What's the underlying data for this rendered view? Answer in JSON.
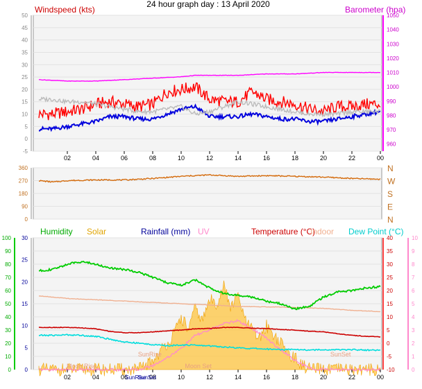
{
  "title": "24 hour graph day : 13 April 2020",
  "colors": {
    "wind_avg": "#0000dd",
    "wind_gust": "#ff0000",
    "wind_grey": "#bbbbbb",
    "baro": "#ff00ff",
    "direction": "#d46a0a",
    "humidity": "#00cc00",
    "solar": "#ffc640",
    "rainfall": "#000099",
    "uv": "#ff88cc",
    "temperature": "#cc0000",
    "indoor": "#f0b090",
    "dewpoint": "#00dddd",
    "plot_bg": "#f4f4f4"
  },
  "chart_data": [
    {
      "id": "wind_baro",
      "type": "line",
      "labels": {
        "left": "Windspeed (kts)",
        "right": "Barometer (hpa)"
      },
      "left_ticks": [
        "-5",
        "0",
        "5",
        "10",
        "15",
        "20",
        "25",
        "30",
        "35",
        "40",
        "45",
        "50"
      ],
      "right_ticks": [
        "960",
        "970",
        "980",
        "990",
        "1000",
        "1010",
        "1020",
        "1030",
        "1040",
        "1050"
      ],
      "ylim_left": [
        -5,
        50
      ],
      "ylim_right": [
        955,
        1050
      ],
      "x_ticks": [
        "02",
        "04",
        "06",
        "08",
        "10",
        "12",
        "14",
        "16",
        "18",
        "20",
        "22",
        "00"
      ],
      "series": [
        {
          "key": "gust",
          "color_key": "wind_gust",
          "values": [
            [
              0,
              10
            ],
            [
              1,
              10
            ],
            [
              2,
              11
            ],
            [
              3,
              12
            ],
            [
              4,
              14
            ],
            [
              5,
              15
            ],
            [
              6,
              14
            ],
            [
              7,
              13
            ],
            [
              8,
              14
            ],
            [
              9,
              19
            ],
            [
              10,
              20
            ],
            [
              11,
              21
            ],
            [
              12,
              16
            ],
            [
              13,
              15
            ],
            [
              14,
              15
            ],
            [
              15,
              19
            ],
            [
              16,
              16
            ],
            [
              17,
              15
            ],
            [
              18,
              14
            ],
            [
              19,
              12
            ],
            [
              20,
              11
            ],
            [
              21,
              13
            ],
            [
              22,
              13
            ],
            [
              23,
              14
            ],
            [
              24,
              14
            ]
          ]
        },
        {
          "key": "avg",
          "color_key": "wind_avg",
          "values": [
            [
              0,
              4
            ],
            [
              1,
              4
            ],
            [
              2,
              5
            ],
            [
              3,
              6
            ],
            [
              4,
              7
            ],
            [
              5,
              9
            ],
            [
              6,
              9
            ],
            [
              7,
              8
            ],
            [
              8,
              8
            ],
            [
              9,
              10
            ],
            [
              10,
              12
            ],
            [
              11,
              13
            ],
            [
              12,
              9
            ],
            [
              13,
              9
            ],
            [
              14,
              9
            ],
            [
              15,
              10
            ],
            [
              16,
              9
            ],
            [
              17,
              8
            ],
            [
              18,
              8
            ],
            [
              19,
              7
            ],
            [
              20,
              7
            ],
            [
              21,
              8
            ],
            [
              22,
              9
            ],
            [
              23,
              10
            ],
            [
              24,
              11
            ]
          ]
        },
        {
          "key": "grey",
          "color_key": "wind_grey",
          "values": [
            [
              0,
              16
            ],
            [
              1,
              16
            ],
            [
              2,
              15
            ],
            [
              3,
              15
            ],
            [
              4,
              14
            ],
            [
              5,
              13
            ],
            [
              6,
              12
            ],
            [
              7,
              11
            ],
            [
              8,
              11
            ],
            [
              9,
              12
            ],
            [
              10,
              13
            ],
            [
              11,
              10
            ],
            [
              12,
              11
            ],
            [
              13,
              13
            ],
            [
              14,
              15
            ],
            [
              15,
              14
            ],
            [
              16,
              13
            ],
            [
              17,
              12
            ],
            [
              18,
              11
            ],
            [
              19,
              10
            ],
            [
              20,
              10
            ],
            [
              21,
              10
            ],
            [
              22,
              11
            ],
            [
              23,
              11
            ],
            [
              24,
              11
            ]
          ]
        },
        {
          "key": "baro",
          "color_key": "baro",
          "axis": "right",
          "values": [
            [
              0,
              1005
            ],
            [
              2,
              1004
            ],
            [
              4,
              1004
            ],
            [
              6,
              1005
            ],
            [
              8,
              1006
            ],
            [
              10,
              1007
            ],
            [
              11,
              1008
            ],
            [
              12,
              1008
            ],
            [
              14,
              1008
            ],
            [
              16,
              1009
            ],
            [
              18,
              1009
            ],
            [
              20,
              1010
            ],
            [
              22,
              1010
            ],
            [
              24,
              1010
            ]
          ]
        }
      ]
    },
    {
      "id": "direction",
      "type": "line",
      "left_ticks": [
        "0",
        "90",
        "180",
        "270",
        "360"
      ],
      "right_ticks": [
        "N",
        "E",
        "S",
        "W",
        "N"
      ],
      "ylim": [
        0,
        360
      ],
      "series": [
        {
          "key": "dir",
          "color_key": "direction",
          "values": [
            [
              0,
              270
            ],
            [
              1,
              260
            ],
            [
              2,
              270
            ],
            [
              4,
              275
            ],
            [
              6,
              275
            ],
            [
              8,
              285
            ],
            [
              10,
              300
            ],
            [
              12,
              310
            ],
            [
              14,
              300
            ],
            [
              16,
              305
            ],
            [
              18,
              300
            ],
            [
              20,
              295
            ],
            [
              22,
              285
            ],
            [
              24,
              280
            ]
          ]
        }
      ]
    },
    {
      "id": "environment",
      "type": "line",
      "labels": {
        "humidity": "Humidity",
        "solar": "Solar",
        "rainfall": "Rainfall (mm)",
        "uv": "UV",
        "temperature": "Temperature (°C)",
        "indoor": "Indoor",
        "dewpoint": "Dew Point (°C)"
      },
      "humidity_ticks": [
        "0",
        "10",
        "20",
        "30",
        "40",
        "50",
        "60",
        "70",
        "80",
        "90",
        "100"
      ],
      "rain_ticks": [
        "0",
        "5",
        "10",
        "15",
        "20",
        "25",
        "30"
      ],
      "temp_ticks": [
        "-10",
        "-5",
        "0",
        "5",
        "10",
        "15",
        "20",
        "25",
        "30",
        "35",
        "40"
      ],
      "uv_ticks": [
        "0",
        "1",
        "2",
        "3",
        "4",
        "5",
        "6",
        "7",
        "8",
        "9",
        "10"
      ],
      "ylim_humidity": [
        0,
        100
      ],
      "ylim_rain": [
        0,
        30
      ],
      "ylim_temp": [
        -10,
        40
      ],
      "ylim_uv": [
        0,
        10
      ],
      "annotations": [
        "Moon Rise",
        "SunRise",
        "Moon Set",
        "SunSet"
      ],
      "x_ticks": [
        "02",
        "04",
        "06",
        "08",
        "10",
        "12",
        "14",
        "16",
        "18",
        "20",
        "22",
        "00"
      ],
      "sun_labels": [
        "SunRise",
        "SunSet"
      ],
      "series": [
        {
          "key": "humidity",
          "color_key": "humidity",
          "values": [
            [
              0,
              75
            ],
            [
              1,
              76
            ],
            [
              2,
              80
            ],
            [
              3,
              82
            ],
            [
              4,
              80
            ],
            [
              5,
              77
            ],
            [
              6,
              76
            ],
            [
              7,
              74
            ],
            [
              8,
              70
            ],
            [
              9,
              66
            ],
            [
              10,
              64
            ],
            [
              11,
              68
            ],
            [
              12,
              62
            ],
            [
              13,
              58
            ],
            [
              14,
              56
            ],
            [
              15,
              55
            ],
            [
              16,
              52
            ],
            [
              17,
              50
            ],
            [
              18,
              46
            ],
            [
              19,
              48
            ],
            [
              20,
              55
            ],
            [
              21,
              59
            ],
            [
              22,
              60
            ],
            [
              23,
              62
            ],
            [
              24,
              63
            ]
          ]
        },
        {
          "key": "temperature",
          "color_key": "temperature",
          "values": [
            [
              0,
              6
            ],
            [
              1,
              6
            ],
            [
              2,
              6
            ],
            [
              3,
              5.8
            ],
            [
              4,
              5.5
            ],
            [
              5,
              4.5
            ],
            [
              6,
              4
            ],
            [
              7,
              4
            ],
            [
              8,
              4.3
            ],
            [
              9,
              4.7
            ],
            [
              10,
              5
            ],
            [
              11,
              5.5
            ],
            [
              12,
              5.6
            ],
            [
              13,
              6
            ],
            [
              14,
              6
            ],
            [
              15,
              5.7
            ],
            [
              16,
              5.6
            ],
            [
              17,
              5.2
            ],
            [
              18,
              5
            ],
            [
              19,
              4.6
            ],
            [
              20,
              4.3
            ],
            [
              21,
              3.6
            ],
            [
              22,
              3
            ],
            [
              23,
              2.6
            ],
            [
              24,
              2.4
            ]
          ]
        },
        {
          "key": "indoor",
          "color_key": "indoor",
          "values": [
            [
              0,
              18
            ],
            [
              2,
              17
            ],
            [
              4,
              16.5
            ],
            [
              6,
              16
            ],
            [
              8,
              15.5
            ],
            [
              10,
              15
            ],
            [
              12,
              14.5
            ],
            [
              14,
              14
            ],
            [
              16,
              13.8
            ],
            [
              18,
              13.6
            ],
            [
              20,
              13.2
            ],
            [
              22,
              12.5
            ],
            [
              24,
              12
            ]
          ]
        },
        {
          "key": "dewpoint",
          "color_key": "dewpoint",
          "values": [
            [
              0,
              3
            ],
            [
              1,
              3
            ],
            [
              2,
              3.2
            ],
            [
              3,
              3
            ],
            [
              4,
              2.6
            ],
            [
              5,
              1.5
            ],
            [
              6,
              0.5
            ],
            [
              7,
              0
            ],
            [
              8,
              -0.5
            ],
            [
              9,
              -1
            ],
            [
              10,
              -0.6
            ],
            [
              11,
              -0.8
            ],
            [
              12,
              -1
            ],
            [
              13,
              -1.4
            ],
            [
              14,
              -1.8
            ],
            [
              15,
              -2
            ],
            [
              16,
              -2.2
            ],
            [
              17,
              -2.4
            ],
            [
              18,
              -2.3
            ],
            [
              19,
              -2.6
            ],
            [
              20,
              -2.4
            ],
            [
              21,
              -2.5
            ],
            [
              22,
              -2.4
            ],
            [
              23,
              -2.6
            ],
            [
              24,
              -2.6
            ]
          ]
        },
        {
          "key": "uv",
          "color_key": "uv",
          "axis": "uv",
          "values": [
            [
              0,
              0
            ],
            [
              7,
              0
            ],
            [
              8,
              0.3
            ],
            [
              9,
              0.9
            ],
            [
              10,
              1.6
            ],
            [
              11,
              2.6
            ],
            [
              12,
              3
            ],
            [
              13,
              3.5
            ],
            [
              14,
              3.7
            ],
            [
              15,
              3.1
            ],
            [
              16,
              2.4
            ],
            [
              17,
              1.5
            ],
            [
              18,
              0.7
            ],
            [
              19,
              0.1
            ],
            [
              20,
              0
            ],
            [
              24,
              0
            ]
          ]
        },
        {
          "key": "solar",
          "color_key": "solar",
          "axis": "rain",
          "values": [
            [
              0,
              0
            ],
            [
              7,
              0
            ],
            [
              7.5,
              1
            ],
            [
              8,
              2
            ],
            [
              8.5,
              4
            ],
            [
              9,
              6
            ],
            [
              9.5,
              8
            ],
            [
              10,
              12
            ],
            [
              10.5,
              9
            ],
            [
              11,
              14
            ],
            [
              11.5,
              11
            ],
            [
              12,
              16
            ],
            [
              12.5,
              15
            ],
            [
              13,
              19
            ],
            [
              13.5,
              14
            ],
            [
              14,
              17
            ],
            [
              14.5,
              11
            ],
            [
              15,
              9
            ],
            [
              15.5,
              7
            ],
            [
              16,
              10
            ],
            [
              16.5,
              8
            ],
            [
              17,
              6
            ],
            [
              17.5,
              4
            ],
            [
              18,
              2.5
            ],
            [
              18.5,
              1
            ],
            [
              19,
              0.2
            ],
            [
              19.5,
              0
            ],
            [
              24,
              0
            ]
          ]
        }
      ]
    }
  ]
}
